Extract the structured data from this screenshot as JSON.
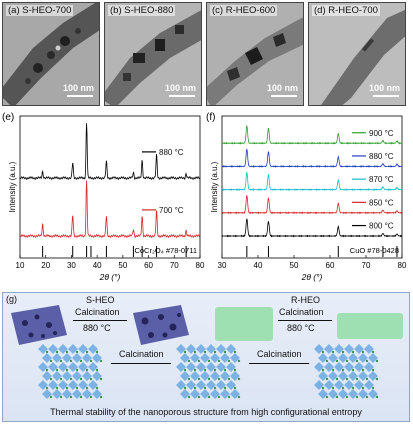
{
  "tem_panels": [
    {
      "letter": "(a)",
      "label": "S-HEO-700",
      "scale": "100 nm"
    },
    {
      "letter": "(b)",
      "label": "S-HEO-880",
      "scale": "100 nm"
    },
    {
      "letter": "(c)",
      "label": "R-HEO-600",
      "scale": "100 nm"
    },
    {
      "letter": "(d)",
      "label": "R-HEO-700",
      "scale": "100 nm"
    }
  ],
  "chart_data": [
    {
      "type": "line",
      "panel": "(e)",
      "xlabel": "2θ (°)",
      "ylabel": "Intensity (a.u.)",
      "xlim": [
        10,
        80
      ],
      "xticks": [
        10,
        20,
        30,
        40,
        50,
        60,
        70,
        80
      ],
      "series": [
        {
          "name": "880 °C",
          "color": "#000000",
          "peaks": [
            [
              18.8,
              0.12
            ],
            [
              30.5,
              0.28
            ],
            [
              35.9,
              1.0
            ],
            [
              43.6,
              0.3
            ],
            [
              54.1,
              0.1
            ],
            [
              57.5,
              0.32
            ],
            [
              63.1,
              0.42
            ],
            [
              74.6,
              0.08
            ]
          ]
        },
        {
          "name": "700 °C",
          "color": "#d62728",
          "peaks": [
            [
              18.8,
              0.22
            ],
            [
              30.5,
              0.38
            ],
            [
              35.9,
              1.0
            ],
            [
              43.6,
              0.36
            ],
            [
              54.1,
              0.12
            ],
            [
              57.5,
              0.36
            ],
            [
              63.1,
              0.46
            ],
            [
              74.6,
              0.1
            ]
          ]
        }
      ],
      "reference": {
        "label": "CoCr₂O₄ #78-0711",
        "lines": [
          18.8,
          30.5,
          35.9,
          37.6,
          43.6,
          54.1,
          57.5,
          63.1,
          74.6
        ]
      }
    },
    {
      "type": "line",
      "panel": "(f)",
      "xlabel": "2θ (°)",
      "ylabel": "Intensity (a.u.)",
      "xlim": [
        30,
        80
      ],
      "xticks": [
        30,
        40,
        50,
        60,
        70,
        80
      ],
      "series": [
        {
          "name": "900 °C",
          "color": "#2ca02c",
          "peaks": [
            [
              36.9,
              1.0
            ],
            [
              42.9,
              0.85
            ],
            [
              62.3,
              0.55
            ],
            [
              74.7,
              0.15
            ],
            [
              78.6,
              0.12
            ]
          ]
        },
        {
          "name": "880 °C",
          "color": "#1f3fbf",
          "peaks": [
            [
              36.9,
              1.0
            ],
            [
              42.9,
              0.85
            ],
            [
              62.3,
              0.55
            ],
            [
              74.7,
              0.15
            ],
            [
              78.6,
              0.12
            ]
          ]
        },
        {
          "name": "870 °C",
          "color": "#17becf",
          "peaks": [
            [
              36.9,
              1.0
            ],
            [
              42.9,
              0.85
            ],
            [
              62.3,
              0.55
            ],
            [
              74.7,
              0.15
            ],
            [
              78.6,
              0.12
            ]
          ]
        },
        {
          "name": "850 °C",
          "color": "#d62728",
          "peaks": [
            [
              36.9,
              1.0
            ],
            [
              42.9,
              0.85
            ],
            [
              62.3,
              0.55
            ],
            [
              74.7,
              0.15
            ],
            [
              78.6,
              0.12
            ]
          ]
        },
        {
          "name": "800 °C",
          "color": "#000000",
          "peaks": [
            [
              36.9,
              1.0
            ],
            [
              42.9,
              0.85
            ],
            [
              62.3,
              0.55
            ],
            [
              74.7,
              0.15
            ],
            [
              78.6,
              0.12
            ]
          ]
        }
      ],
      "reference": {
        "label": "CuO #78-0428",
        "lines": [
          36.9,
          42.9,
          62.3,
          74.7,
          78.6
        ]
      }
    }
  ],
  "panel_g": {
    "letter": "(g)",
    "shee_title": "S-HEO",
    "shee_step": "Calcination",
    "shee_temp": "880 °C",
    "rheo_title": "R-HEO",
    "rheo_step": "Calcination",
    "rheo_temp": "880 °C",
    "arrow1": "Calcination",
    "arrow2": "Calcination",
    "caption": "Thermal stability of the nanoporous structure from high configurational entropy"
  },
  "colors": {
    "porous": "#5b5fa8",
    "rheo_block": "#9fe0b2",
    "lattice_blue": "#6aa8e0",
    "lattice_green": "#3c9a4a",
    "panel_border": "#8fa6c9"
  }
}
